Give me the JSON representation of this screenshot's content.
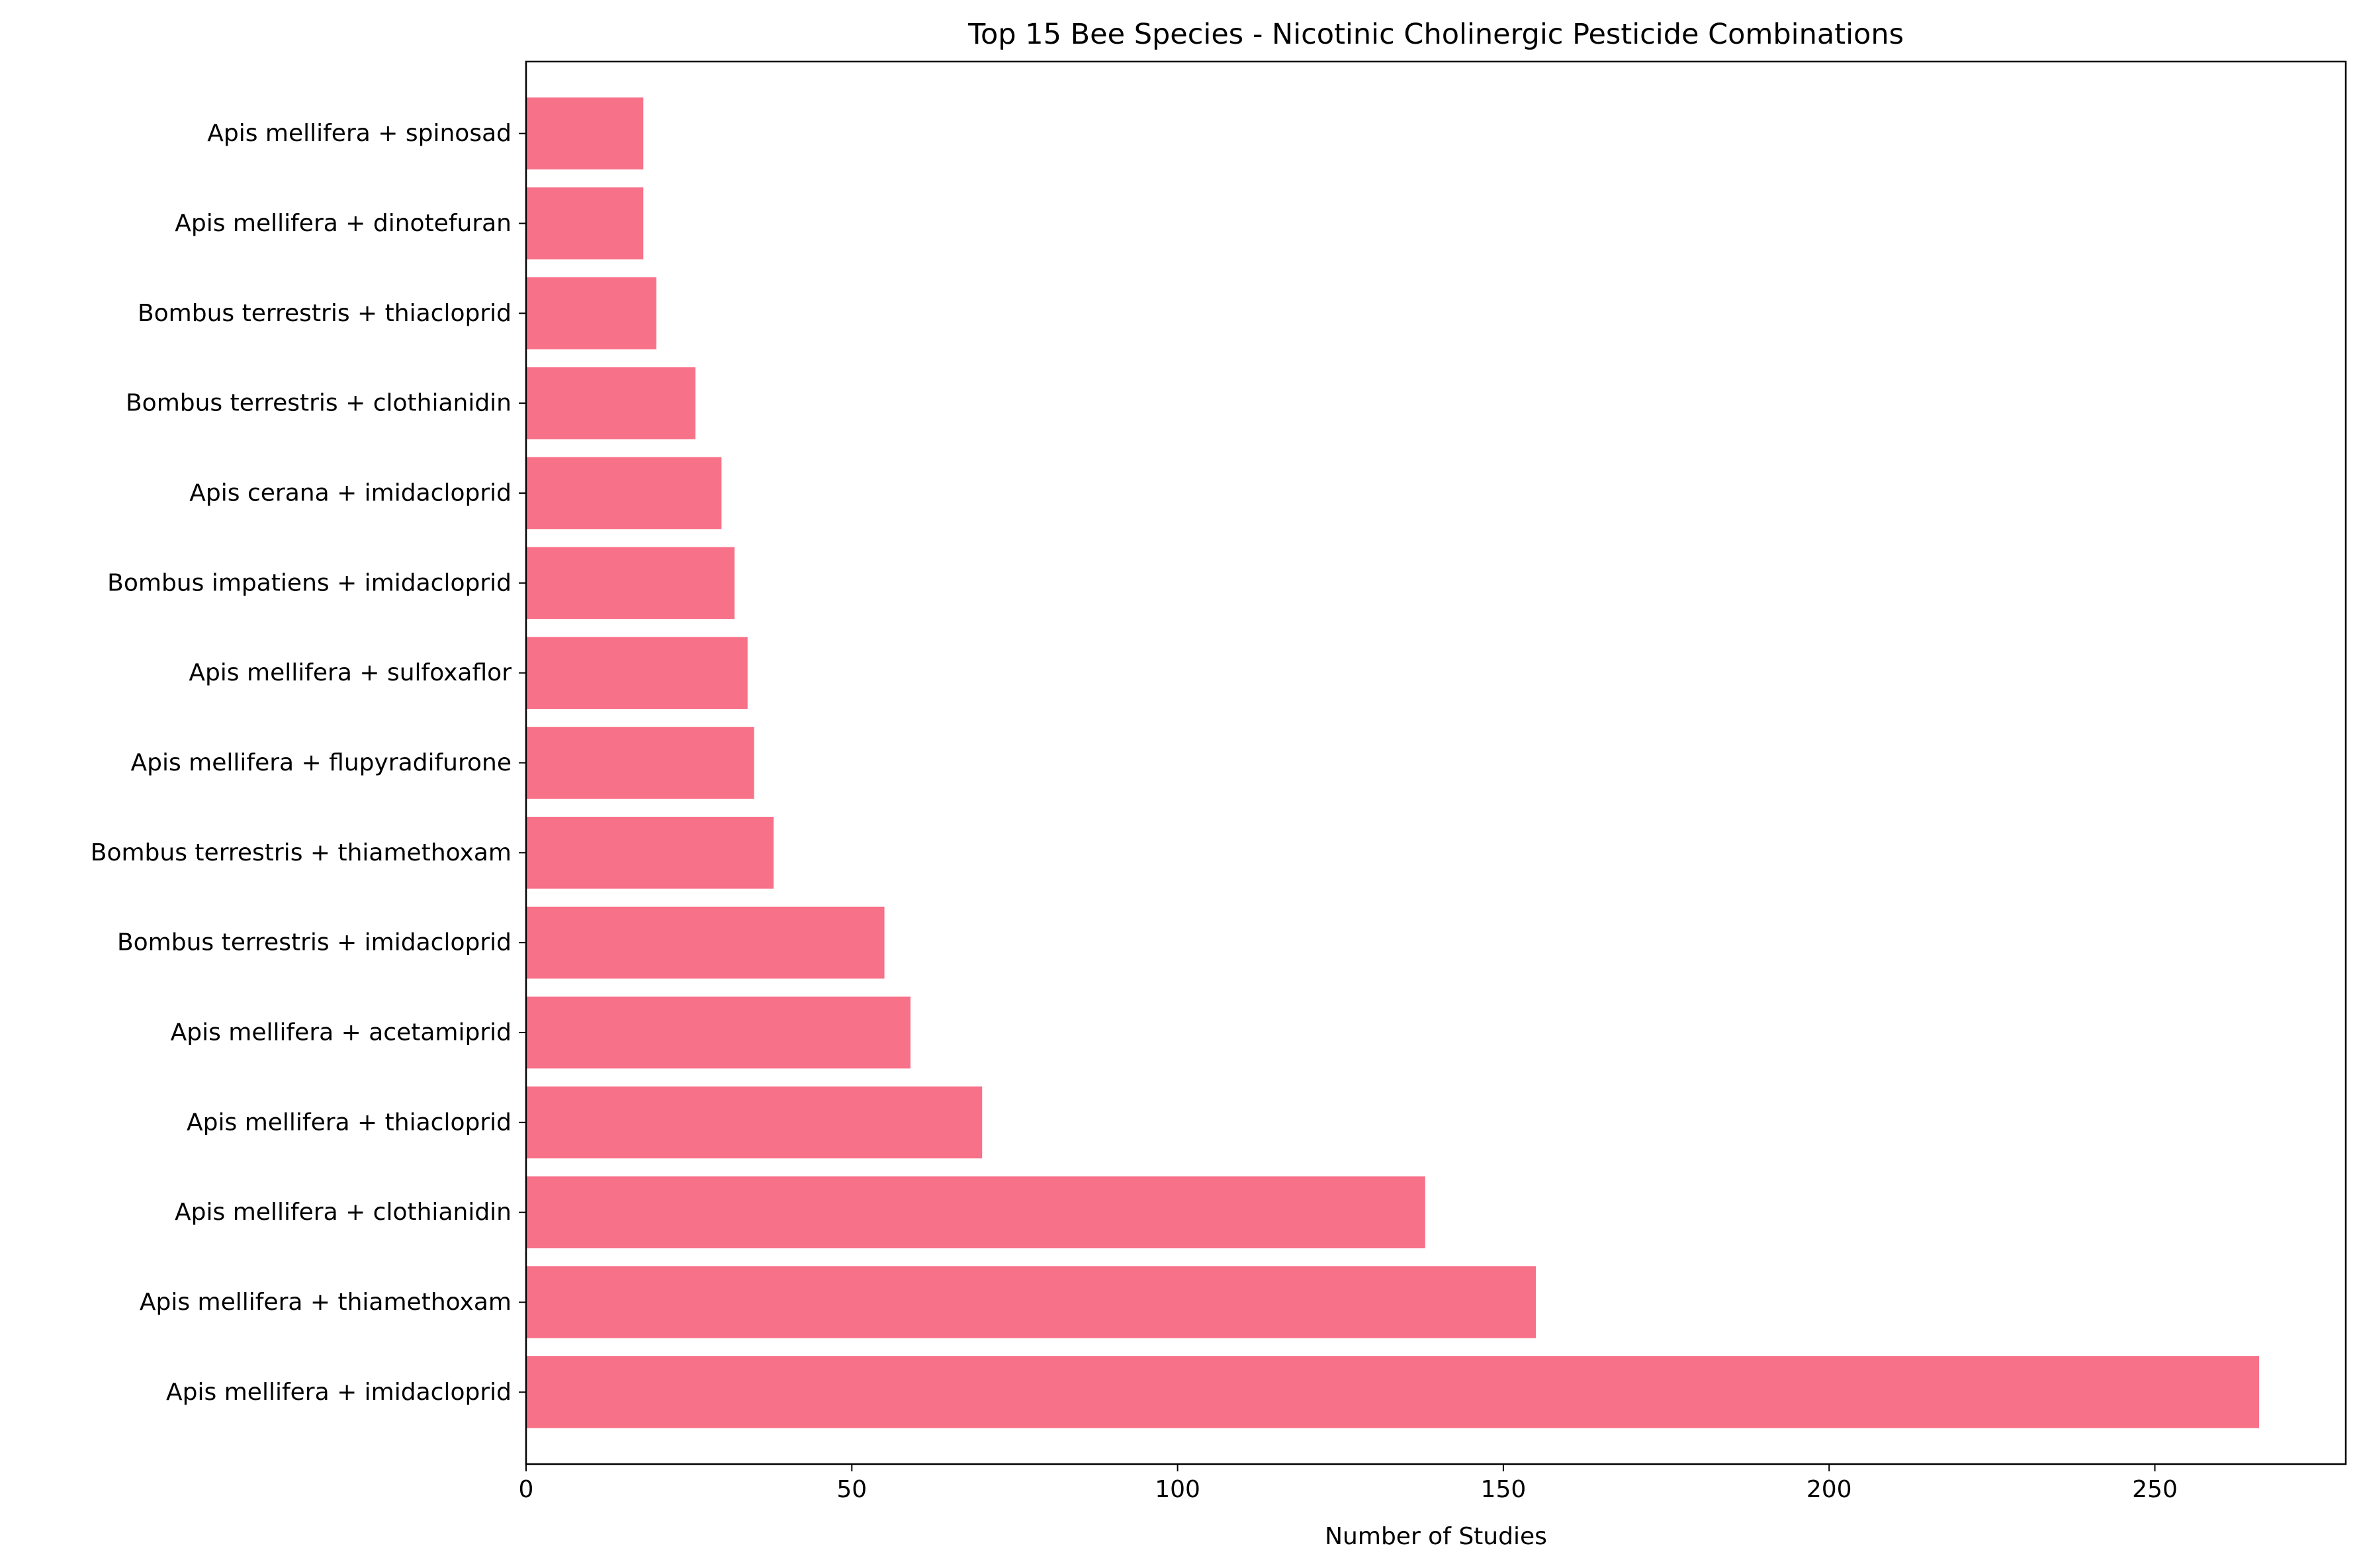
{
  "chart_data": {
    "type": "bar",
    "orientation": "horizontal",
    "title": "Top 15 Bee Species - Nicotinic Cholinergic Pesticide Combinations",
    "xlabel": "Number of Studies",
    "ylabel": "",
    "xlim": [
      0,
      279.3
    ],
    "xticks": [
      0,
      50,
      100,
      150,
      200,
      250
    ],
    "grid": false,
    "legend": "none",
    "bar_color": "#f77189",
    "categories": [
      "Apis mellifera + imidacloprid",
      "Apis mellifera + thiamethoxam",
      "Apis mellifera + clothianidin",
      "Apis mellifera + thiacloprid",
      "Apis mellifera + acetamiprid",
      "Bombus terrestris + imidacloprid",
      "Bombus terrestris + thiamethoxam",
      "Apis mellifera + flupyradifurone",
      "Apis mellifera + sulfoxaflor",
      "Bombus impatiens + imidacloprid",
      "Apis cerana + imidacloprid",
      "Bombus terrestris + clothianidin",
      "Bombus terrestris + thiacloprid",
      "Apis mellifera + dinotefuran",
      "Apis mellifera + spinosad"
    ],
    "values": [
      266,
      155,
      138,
      70,
      59,
      55,
      38,
      35,
      34,
      32,
      30,
      26,
      20,
      18,
      18
    ]
  }
}
